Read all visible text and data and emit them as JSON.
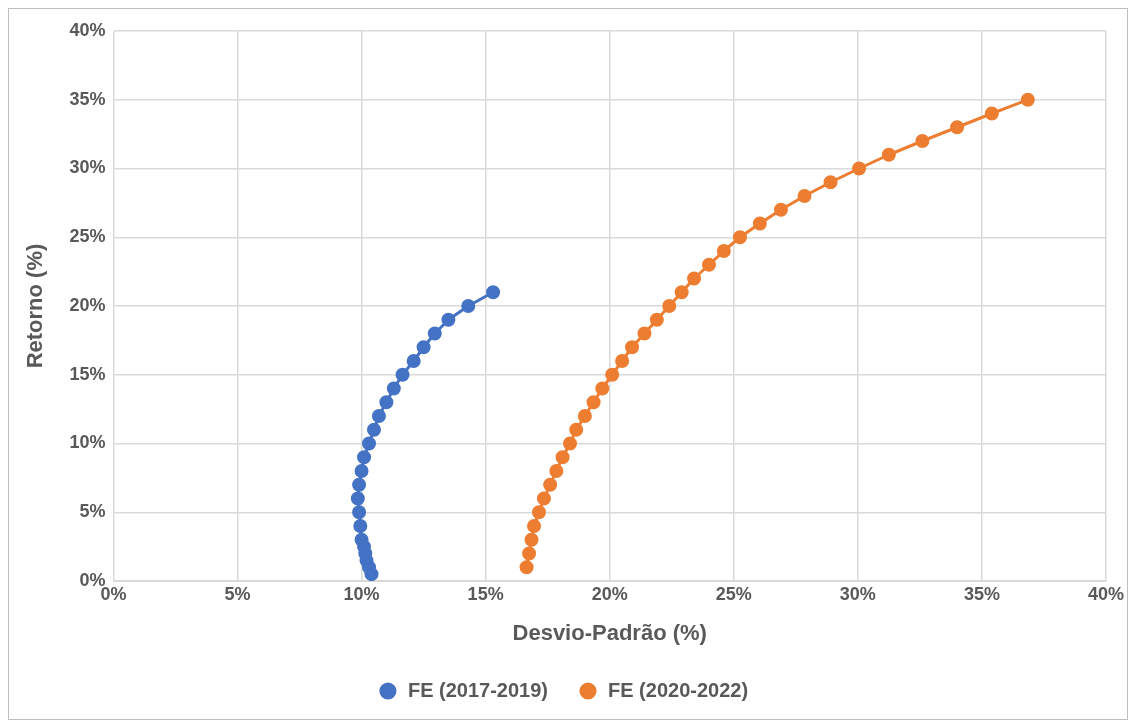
{
  "chart_data": {
    "type": "line",
    "xlabel": "Desvio-Padrão (%)",
    "ylabel": "Retorno (%)",
    "xlim": [
      0,
      40
    ],
    "ylim": [
      0,
      40
    ],
    "xticks": [
      {
        "value": 0,
        "label": "0%"
      },
      {
        "value": 5,
        "label": "5%"
      },
      {
        "value": 10,
        "label": "10%"
      },
      {
        "value": 15,
        "label": "15%"
      },
      {
        "value": 20,
        "label": "20%"
      },
      {
        "value": 25,
        "label": "25%"
      },
      {
        "value": 30,
        "label": "30%"
      },
      {
        "value": 35,
        "label": "35%"
      },
      {
        "value": 40,
        "label": "40%"
      }
    ],
    "yticks": [
      {
        "value": 0,
        "label": "0%"
      },
      {
        "value": 5,
        "label": "5%"
      },
      {
        "value": 10,
        "label": "10%"
      },
      {
        "value": 15,
        "label": "15%"
      },
      {
        "value": 20,
        "label": "20%"
      },
      {
        "value": 25,
        "label": "25%"
      },
      {
        "value": 30,
        "label": "30%"
      },
      {
        "value": 35,
        "label": "35%"
      },
      {
        "value": 40,
        "label": "40%"
      }
    ],
    "grid": true,
    "legend": "bottom",
    "marker": "circle",
    "line_style": "solid",
    "series": [
      {
        "name": "FE (2017-2019)",
        "color": "#4472c4",
        "x": [
          10.4,
          10.3,
          10.2,
          10.15,
          10.1,
          10.0,
          9.95,
          9.9,
          9.85,
          9.9,
          10.0,
          10.1,
          10.3,
          10.5,
          10.7,
          11.0,
          11.3,
          11.65,
          12.1,
          12.5,
          12.95,
          13.5,
          14.3,
          15.3
        ],
        "values": [
          0.5,
          1,
          1.5,
          2,
          2.5,
          3,
          4,
          5,
          6,
          7,
          8,
          9,
          10,
          11,
          12,
          13,
          14,
          15,
          16,
          17,
          18,
          19,
          20,
          21
        ]
      },
      {
        "name": "FE (2020-2022)",
        "color": "#ed7d31",
        "x": [
          16.65,
          16.75,
          16.85,
          16.95,
          17.15,
          17.35,
          17.6,
          17.85,
          18.1,
          18.4,
          18.65,
          19.0,
          19.35,
          19.7,
          20.1,
          20.5,
          20.9,
          21.4,
          21.9,
          22.4,
          22.9,
          23.4,
          24.0,
          24.6,
          25.25,
          26.05,
          26.9,
          27.85,
          28.9,
          30.05,
          31.25,
          32.6,
          34.0,
          35.4,
          36.85
        ],
        "values": [
          1,
          2,
          3,
          4,
          5,
          6,
          7,
          8,
          9,
          10,
          11,
          12,
          13,
          14,
          15,
          16,
          17,
          18,
          19,
          20,
          21,
          22,
          23,
          24,
          25,
          26,
          27,
          28,
          29,
          30,
          31,
          32,
          33,
          34,
          35
        ]
      }
    ]
  }
}
